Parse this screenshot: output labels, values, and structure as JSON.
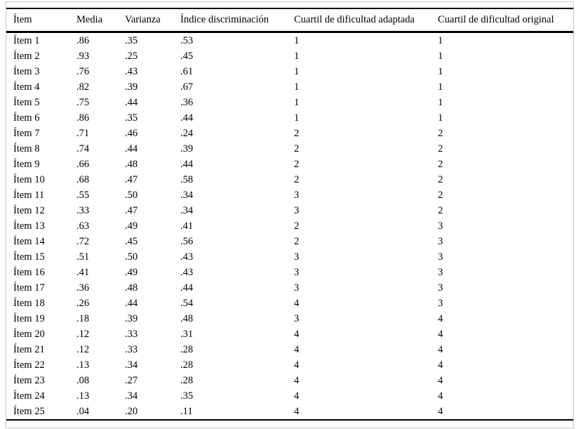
{
  "table": {
    "columns": [
      "Ítem",
      "Media",
      "Varianza",
      "Índice discriminación",
      "Cuartil de dificultad adaptada",
      "Cuartil de dificultad original"
    ],
    "rows": [
      [
        "Ítem 1",
        ".86",
        ".35",
        ".53",
        "1",
        "1"
      ],
      [
        "Ítem 2",
        ".93",
        ".25",
        ".45",
        "1",
        "1"
      ],
      [
        "Ítem 3",
        ".76",
        ".43",
        ".61",
        "1",
        "1"
      ],
      [
        "Ítem 4",
        ".82",
        ".39",
        ".67",
        "1",
        "1"
      ],
      [
        "Ítem 5",
        ".75",
        ".44",
        ".36",
        "1",
        "1"
      ],
      [
        "Ítem 6",
        ".86",
        ".35",
        ".44",
        "1",
        "1"
      ],
      [
        "Ítem 7",
        ".71",
        ".46",
        ".24",
        "2",
        "2"
      ],
      [
        "Ítem 8",
        ".74",
        ".44",
        ".39",
        "2",
        "2"
      ],
      [
        "Ítem 9",
        ".66",
        ".48",
        ".44",
        "2",
        "2"
      ],
      [
        "Ítem 10",
        ".68",
        ".47",
        ".58",
        "2",
        "2"
      ],
      [
        "Ítem 11",
        ".55",
        ".50",
        ".34",
        "3",
        "2"
      ],
      [
        "Ítem 12",
        ".33",
        ".47",
        ".34",
        "3",
        "2"
      ],
      [
        "Ítem 13",
        ".63",
        ".49",
        ".41",
        "2",
        "3"
      ],
      [
        "Ítem 14",
        ".72",
        ".45",
        ".56",
        "2",
        "3"
      ],
      [
        "Ítem 15",
        ".51",
        ".50",
        ".43",
        "3",
        "3"
      ],
      [
        "Ítem 16",
        ".41",
        ".49",
        ".43",
        "3",
        "3"
      ],
      [
        "Ítem 17",
        ".36",
        ".48",
        ".44",
        "3",
        "3"
      ],
      [
        "Ítem 18",
        ".26",
        ".44",
        ".54",
        "4",
        "3"
      ],
      [
        "Ítem 19",
        ".18",
        ".39",
        ".48",
        "3",
        "4"
      ],
      [
        "Ítem 20",
        ".12",
        ".33",
        ".31",
        "4",
        "4"
      ],
      [
        "Ítem 21",
        ".12",
        ".33",
        ".28",
        "4",
        "4"
      ],
      [
        "Ítem 22",
        ".13",
        ".34",
        ".28",
        "4",
        "4"
      ],
      [
        "Ítem 23",
        ".08",
        ".27",
        ".28",
        "4",
        "4"
      ],
      [
        "Ítem 24",
        ".13",
        ".34",
        ".35",
        "4",
        "4"
      ],
      [
        "Ítem 25",
        ".04",
        ".20",
        ".11",
        "4",
        "4"
      ]
    ],
    "column_keys": [
      "item",
      "media",
      "varianza",
      "indice-discriminacion",
      "cuartil-dificultad-adaptada",
      "cuartil-dificultad-original"
    ]
  },
  "colors": {
    "rule": "#000000",
    "outer_border": "#c6c6c6",
    "text": "#000000",
    "background": "#ffffff"
  }
}
